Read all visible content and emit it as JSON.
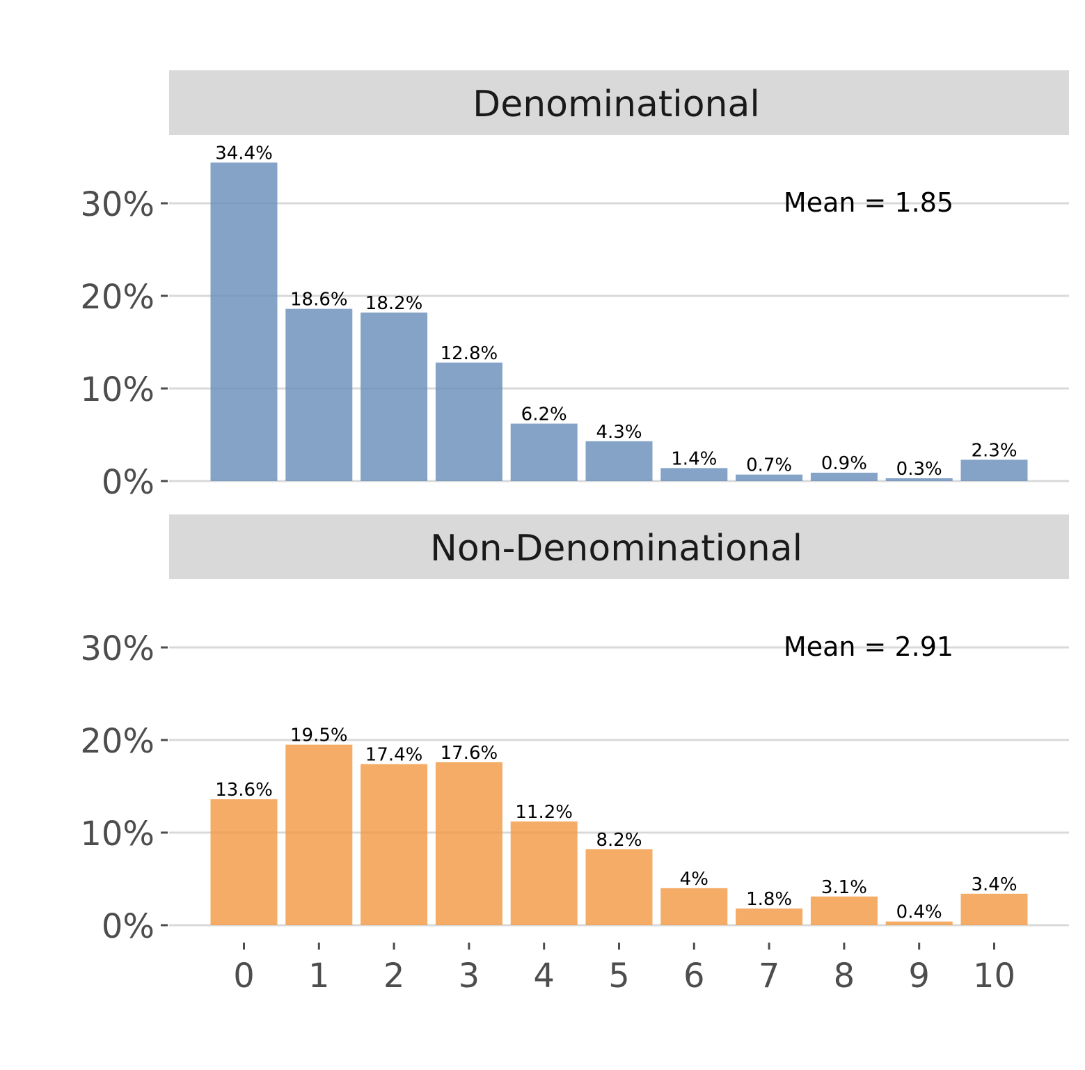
{
  "chart_data": {
    "type": "bar",
    "categories": [
      "0",
      "1",
      "2",
      "3",
      "4",
      "5",
      "6",
      "7",
      "8",
      "9",
      "10"
    ],
    "ylim": [
      0,
      0.35
    ],
    "yticks": [
      0,
      0.1,
      0.2,
      0.3
    ],
    "ytick_labels": [
      "0%",
      "10%",
      "20%",
      "30%"
    ],
    "grid": true,
    "panels": [
      {
        "name": "Denominational",
        "color": "#6a8fbb",
        "values": [
          0.344,
          0.186,
          0.182,
          0.128,
          0.062,
          0.043,
          0.014,
          0.007,
          0.009,
          0.003,
          0.023
        ],
        "labels": [
          "34.4%",
          "18.6%",
          "18.2%",
          "12.8%",
          "6.2%",
          "4.3%",
          "1.4%",
          "0.7%",
          "0.9%",
          "0.3%",
          "2.3%"
        ],
        "mean_text": "Mean = 1.85",
        "mean_y": 0.3
      },
      {
        "name": "Non-Denominational",
        "color": "#f29a45",
        "values": [
          0.136,
          0.195,
          0.174,
          0.176,
          0.112,
          0.082,
          0.04,
          0.018,
          0.031,
          0.004,
          0.034
        ],
        "labels": [
          "13.6%",
          "19.5%",
          "17.4%",
          "17.6%",
          "11.2%",
          "8.2%",
          "4%",
          "1.8%",
          "3.1%",
          "0.4%",
          "3.4%"
        ],
        "mean_text": "Mean = 2.91",
        "mean_y": 0.3
      }
    ]
  }
}
